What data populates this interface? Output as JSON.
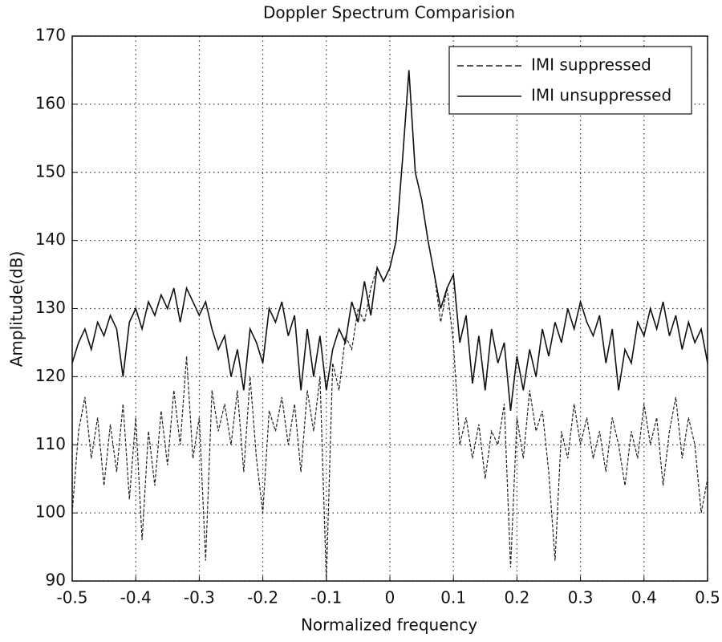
{
  "chart_data": {
    "type": "line",
    "title": "Doppler Spectrum Comparision",
    "xlabel": "Normalized frequency",
    "ylabel": "Amplitude(dB)",
    "xlim": [
      -0.5,
      0.5
    ],
    "ylim": [
      90,
      170
    ],
    "xticks": [
      -0.5,
      -0.4,
      -0.3,
      -0.2,
      -0.1,
      0,
      0.1,
      0.2,
      0.3,
      0.4,
      0.5
    ],
    "yticks": [
      90,
      100,
      110,
      120,
      130,
      140,
      150,
      160,
      170
    ],
    "grid": true,
    "legend": "upper right",
    "x": [
      -0.5,
      -0.49,
      -0.48,
      -0.47,
      -0.46,
      -0.45,
      -0.44,
      -0.43,
      -0.42,
      -0.41,
      -0.4,
      -0.39,
      -0.38,
      -0.37,
      -0.36,
      -0.35,
      -0.34,
      -0.33,
      -0.32,
      -0.31,
      -0.3,
      -0.29,
      -0.28,
      -0.27,
      -0.26,
      -0.25,
      -0.24,
      -0.23,
      -0.22,
      -0.21,
      -0.2,
      -0.19,
      -0.18,
      -0.17,
      -0.16,
      -0.15,
      -0.14,
      -0.13,
      -0.12,
      -0.11,
      -0.1,
      -0.09,
      -0.08,
      -0.07,
      -0.06,
      -0.05,
      -0.04,
      -0.03,
      -0.02,
      -0.01,
      0,
      0.01,
      0.02,
      0.03,
      0.04,
      0.05,
      0.06,
      0.07,
      0.08,
      0.09,
      0.1,
      0.11,
      0.12,
      0.13,
      0.14,
      0.15,
      0.16,
      0.17,
      0.18,
      0.19,
      0.2,
      0.21,
      0.22,
      0.23,
      0.24,
      0.25,
      0.26,
      0.27,
      0.28,
      0.29,
      0.3,
      0.31,
      0.32,
      0.33,
      0.34,
      0.35,
      0.36,
      0.37,
      0.38,
      0.39,
      0.4,
      0.41,
      0.42,
      0.43,
      0.44,
      0.45,
      0.46,
      0.47,
      0.48,
      0.49,
      0.5
    ],
    "series": [
      {
        "name": "IMI suppressed",
        "color": "#222222",
        "dash": true,
        "values": [
          100,
          112,
          117,
          108,
          114,
          104,
          113,
          106,
          116,
          102,
          114,
          96,
          112,
          104,
          115,
          107,
          118,
          110,
          123,
          108,
          114,
          93,
          118,
          112,
          116,
          110,
          118,
          106,
          120,
          108,
          100,
          115,
          112,
          117,
          110,
          116,
          106,
          118,
          112,
          120,
          90,
          122,
          118,
          126,
          124,
          130,
          128,
          133,
          136,
          134,
          136,
          140,
          152,
          165,
          150,
          146,
          140,
          135,
          128,
          133,
          125,
          110,
          114,
          108,
          113,
          105,
          112,
          110,
          116,
          92,
          114,
          108,
          118,
          112,
          115,
          106,
          93,
          112,
          108,
          116,
          110,
          114,
          108,
          112,
          106,
          114,
          110,
          104,
          112,
          108,
          116,
          110,
          114,
          104,
          112,
          117,
          108,
          114,
          110,
          100,
          105
        ]
      },
      {
        "name": "IMI unsuppressed",
        "color": "#111111",
        "dash": false,
        "values": [
          122,
          125,
          127,
          124,
          128,
          126,
          129,
          127,
          120,
          128,
          130,
          127,
          131,
          129,
          132,
          130,
          133,
          128,
          133,
          131,
          129,
          131,
          127,
          124,
          126,
          120,
          124,
          118,
          127,
          125,
          122,
          130,
          128,
          131,
          126,
          129,
          118,
          127,
          120,
          126,
          118,
          124,
          127,
          125,
          131,
          128,
          134,
          129,
          136,
          134,
          136,
          140,
          152,
          165,
          150,
          146,
          140,
          135,
          130,
          133,
          135,
          125,
          129,
          119,
          126,
          118,
          127,
          122,
          125,
          115,
          123,
          118,
          124,
          120,
          127,
          123,
          128,
          125,
          130,
          127,
          131,
          128,
          126,
          129,
          122,
          127,
          118,
          124,
          122,
          128,
          126,
          130,
          127,
          131,
          126,
          129,
          124,
          128,
          125,
          127,
          122
        ]
      }
    ]
  }
}
